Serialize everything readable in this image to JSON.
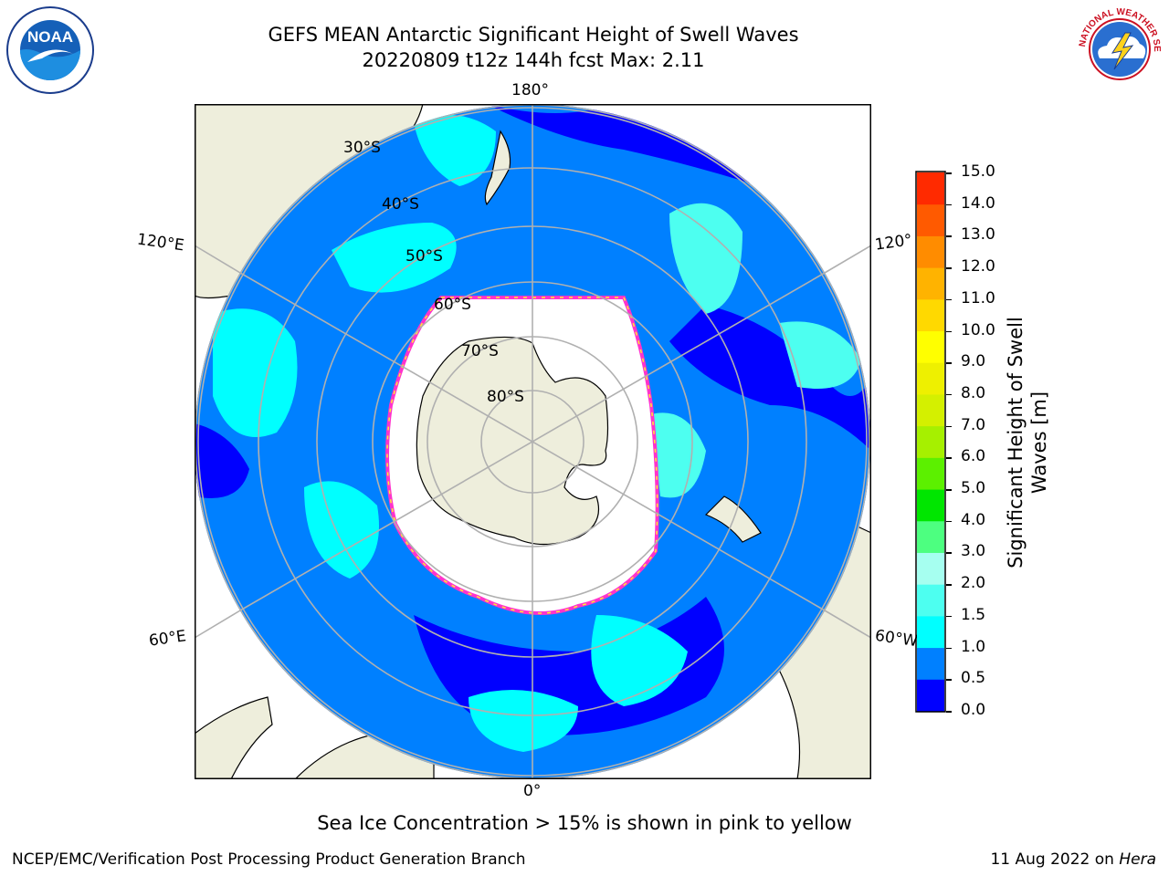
{
  "header": {
    "title_line1": "GEFS MEAN Antarctic Significant Height of Swell Waves",
    "title_line2": "20220809 t12z 144h fcst   Max: 2.11"
  },
  "map": {
    "projection": "south-polar-stereographic",
    "ocean_colors": [
      "#0000ff",
      "#0080ff",
      "#00ffff",
      "#4dfff0"
    ],
    "land_color": "#eeeedc",
    "ice_edge_colors": [
      "#ff33cc",
      "#ffee33"
    ],
    "lon_labels": {
      "top": "180°",
      "bottom": "0°",
      "left_upper": "120°E",
      "left_lower": "60°E",
      "right_upper": "120°",
      "right_lower": "60°W"
    },
    "lat_labels": [
      "30°S",
      "40°S",
      "50°S",
      "60°S",
      "70°S",
      "80°S"
    ]
  },
  "colorbar": {
    "label": "Significant Height of Swell Waves [m]",
    "ticks": [
      "0.0",
      "0.5",
      "1.0",
      "1.5",
      "2.0",
      "3.0",
      "4.0",
      "5.0",
      "6.0",
      "7.0",
      "8.0",
      "9.0",
      "10.0",
      "11.0",
      "12.0",
      "13.0",
      "14.0",
      "15.0"
    ],
    "colors": [
      "#0000ff",
      "#0080ff",
      "#00ffff",
      "#4dfff0",
      "#a6fff0",
      "#4dff80",
      "#00e600",
      "#5cf000",
      "#a6f000",
      "#d4f000",
      "#eef000",
      "#ffff00",
      "#ffd900",
      "#ffb300",
      "#ff8c00",
      "#ff5a00",
      "#ff2a00"
    ]
  },
  "footer": {
    "note": "Sea Ice Concentration > 15% is shown in pink to yellow",
    "left": "NCEP/EMC/Verification Post Processing Product Generation Branch",
    "right_prefix": "11 Aug 2022 on ",
    "right_machine": "Hera"
  },
  "logos": {
    "left": "noaa-logo",
    "right": "nws-logo"
  }
}
